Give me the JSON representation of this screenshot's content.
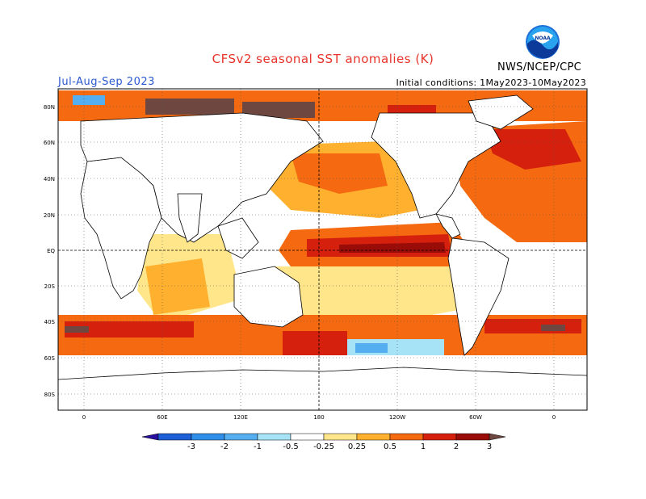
{
  "title": "CFSv2 seasonal SST anomalies (K)",
  "season": "Jul-Aug-Sep 2023",
  "initial_conditions": "Initial conditions: 1May2023-10May2023",
  "agency": "NWS/NCEP/CPC",
  "logo": {
    "text": "NOAA",
    "icon": "noaa-logo-icon"
  },
  "lat_labels": [
    "80N",
    "60N",
    "40N",
    "20N",
    "EQ",
    "20S",
    "40S",
    "60S",
    "80S"
  ],
  "lon_labels": [
    "0",
    "60E",
    "120E",
    "180",
    "120W",
    "60W",
    "0"
  ],
  "colorbar": {
    "levels": [
      "-3",
      "-2",
      "-1",
      "-0.5",
      "-0.25",
      "0.25",
      "0.5",
      "1",
      "2",
      "3"
    ],
    "colors": [
      "#2a10a0",
      "#1c5fd6",
      "#2f8ee8",
      "#55aef0",
      "#a6e3f7",
      "#ffffff",
      "#ffe68a",
      "#ffb02e",
      "#f56a10",
      "#d6200e",
      "#9a0c08",
      "#6e4840"
    ]
  },
  "colors": {
    "land": "#ffffff",
    "title_red": "#e8332a",
    "season_blue": "#2a58d0"
  }
}
